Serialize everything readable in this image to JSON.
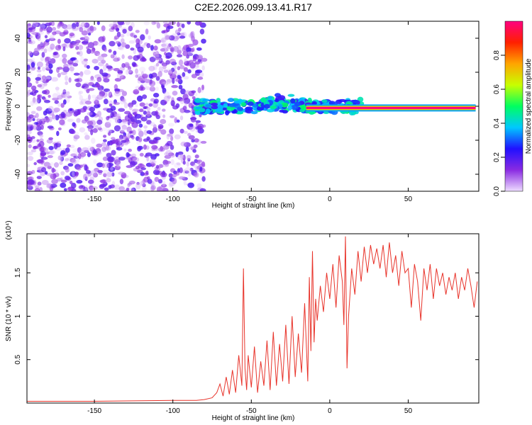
{
  "title": "C2E2.2026.099.13.41.R17",
  "chart_data": [
    {
      "type": "heatmap",
      "xlabel": "Height of straight line (km)",
      "ylabel": "Frequency (Hz)",
      "xlim": [
        -193,
        95
      ],
      "ylim": [
        -50,
        50
      ],
      "xticks": [
        -150,
        -100,
        -50,
        0,
        50
      ],
      "yticks": [
        -40,
        -20,
        0,
        20,
        40
      ],
      "colorbar": {
        "label": "Normalized spectral amplitude",
        "range": [
          0,
          1
        ],
        "ticks": [
          0.0,
          0.2,
          0.4,
          0.6,
          0.8
        ],
        "colors": [
          "#eeddff",
          "#8a2be2",
          "#2010ff",
          "#00c8ff",
          "#00ff60",
          "#c8ff00",
          "#ffa500",
          "#ff2000",
          "#ff0080"
        ]
      },
      "regions": [
        {
          "x": [
            -193,
            -80
          ],
          "freq_range": [
            -50,
            50
          ],
          "amplitude": [
            0.0,
            0.2
          ]
        },
        {
          "x": [
            -85,
            20
          ],
          "freq_center": 0,
          "freq_halfwidth": 4,
          "amplitude": [
            0.2,
            0.5
          ]
        },
        {
          "x": [
            -15,
            93
          ],
          "freq_center": -1,
          "freq_halfwidth": 1,
          "amplitude": [
            0.8,
            1.0
          ]
        }
      ]
    },
    {
      "type": "line",
      "xlabel": "Height of straight line (km)",
      "ylabel": "SNR (10 * v/v)",
      "ylabel_multiplier": "(x10⁴)",
      "xlim": [
        -193,
        95
      ],
      "ylim": [
        0,
        1.95
      ],
      "xticks": [
        -150,
        -100,
        -50,
        0,
        50
      ],
      "yticks": [
        0.5,
        1.0,
        1.5
      ],
      "color": "#e8332a",
      "x": [
        -193,
        -150,
        -100,
        -85,
        -80,
        -75,
        -72,
        -70,
        -68,
        -66,
        -64,
        -62,
        -60,
        -58,
        -56,
        -55,
        -54,
        -53,
        -52,
        -50,
        -48,
        -46,
        -44,
        -42,
        -40,
        -38,
        -36,
        -34,
        -32,
        -30,
        -28,
        -26,
        -24,
        -22,
        -20,
        -18,
        -16,
        -14,
        -13,
        -12,
        -11,
        -10,
        -9,
        -8,
        -6,
        -4,
        -2,
        0,
        2,
        4,
        6,
        8,
        9,
        10,
        11,
        12,
        14,
        16,
        18,
        20,
        22,
        24,
        26,
        28,
        30,
        32,
        34,
        36,
        38,
        40,
        42,
        44,
        46,
        48,
        50,
        52,
        54,
        56,
        58,
        60,
        62,
        64,
        66,
        68,
        70,
        72,
        74,
        76,
        78,
        80,
        82,
        84,
        86,
        88,
        90,
        92,
        94
      ],
      "y": [
        0.02,
        0.02,
        0.03,
        0.03,
        0.04,
        0.06,
        0.12,
        0.22,
        0.08,
        0.3,
        0.1,
        0.38,
        0.12,
        0.55,
        0.2,
        1.55,
        0.4,
        0.15,
        0.55,
        0.18,
        0.65,
        0.12,
        0.48,
        0.2,
        0.72,
        0.15,
        0.82,
        0.2,
        0.68,
        0.25,
        0.9,
        0.22,
        1.0,
        0.3,
        0.8,
        0.35,
        1.15,
        0.25,
        1.45,
        0.6,
        1.75,
        0.7,
        1.2,
        0.95,
        1.35,
        1.05,
        1.5,
        1.2,
        1.6,
        1.1,
        1.7,
        1.4,
        0.9,
        1.92,
        0.4,
        1.0,
        1.55,
        1.25,
        1.75,
        1.4,
        1.8,
        1.5,
        1.82,
        1.6,
        1.78,
        1.55,
        1.82,
        1.45,
        1.85,
        1.5,
        1.7,
        1.35,
        1.75,
        1.5,
        1.55,
        1.1,
        1.6,
        1.4,
        0.95,
        1.55,
        1.3,
        1.6,
        1.2,
        1.55,
        1.35,
        1.5,
        1.25,
        1.45,
        1.3,
        1.5,
        1.2,
        1.45,
        1.3,
        1.55,
        1.35,
        1.1,
        1.4
      ]
    }
  ]
}
